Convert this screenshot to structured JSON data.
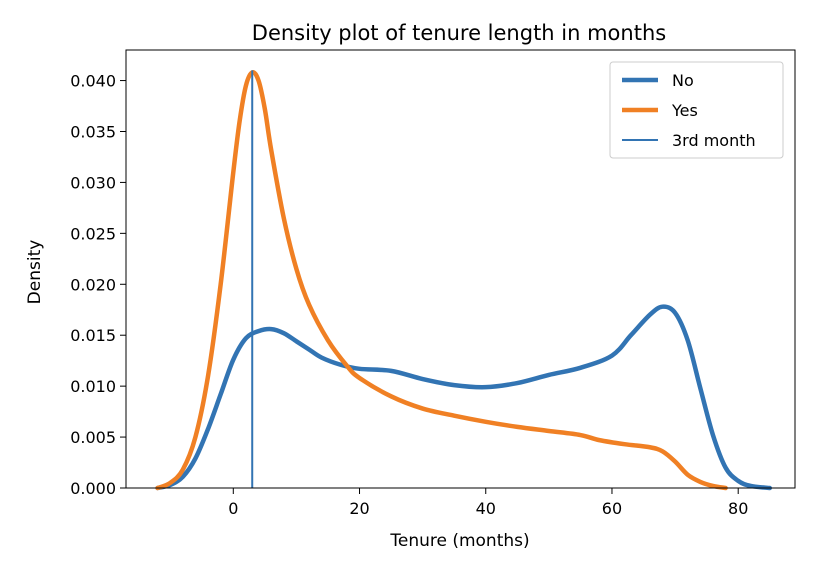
{
  "chart_data": {
    "type": "line",
    "title": "Density plot of tenure length in months",
    "xlabel": "Tenure (months)",
    "ylabel": "Density",
    "xlim": [
      -17,
      89
    ],
    "ylim": [
      0,
      0.043
    ],
    "xticks": [
      0,
      20,
      40,
      60,
      80
    ],
    "xtick_labels": [
      "0",
      "20",
      "40",
      "60",
      "80"
    ],
    "yticks": [
      0.0,
      0.005,
      0.01,
      0.015,
      0.02,
      0.025,
      0.03,
      0.035,
      0.04
    ],
    "ytick_labels": [
      "0.000",
      "0.005",
      "0.010",
      "0.015",
      "0.020",
      "0.025",
      "0.030",
      "0.035",
      "0.040"
    ],
    "grid": false,
    "legend_position": "top-right",
    "series": [
      {
        "name": "No",
        "color": "#3274b3",
        "points": [
          [
            -12,
            0.0
          ],
          [
            -10,
            0.0003
          ],
          [
            -8,
            0.0011
          ],
          [
            -6,
            0.0029
          ],
          [
            -4,
            0.0058
          ],
          [
            -2,
            0.0092
          ],
          [
            0,
            0.0126
          ],
          [
            2,
            0.0147
          ],
          [
            4,
            0.0154
          ],
          [
            6,
            0.0156
          ],
          [
            8,
            0.0152
          ],
          [
            10,
            0.0144
          ],
          [
            12,
            0.0136
          ],
          [
            14,
            0.0128
          ],
          [
            17,
            0.0121
          ],
          [
            20,
            0.0117
          ],
          [
            25,
            0.0115
          ],
          [
            30,
            0.0107
          ],
          [
            35,
            0.0101
          ],
          [
            40,
            0.0099
          ],
          [
            45,
            0.0103
          ],
          [
            50,
            0.0111
          ],
          [
            55,
            0.0118
          ],
          [
            60,
            0.013
          ],
          [
            63,
            0.015
          ],
          [
            66,
            0.017
          ],
          [
            68,
            0.0178
          ],
          [
            70,
            0.0172
          ],
          [
            72,
            0.0145
          ],
          [
            74,
            0.0098
          ],
          [
            76,
            0.0052
          ],
          [
            78,
            0.002
          ],
          [
            80,
            0.0007
          ],
          [
            82,
            0.0002
          ],
          [
            85,
            0.0
          ]
        ]
      },
      {
        "name": "Yes",
        "color": "#f08024",
        "points": [
          [
            -12,
            0.0
          ],
          [
            -10,
            0.0005
          ],
          [
            -8,
            0.0018
          ],
          [
            -6,
            0.005
          ],
          [
            -4,
            0.011
          ],
          [
            -2,
            0.02
          ],
          [
            0,
            0.031
          ],
          [
            1,
            0.036
          ],
          [
            2,
            0.0395
          ],
          [
            3,
            0.0408
          ],
          [
            4,
            0.04
          ],
          [
            5,
            0.0372
          ],
          [
            6,
            0.0332
          ],
          [
            8,
            0.0265
          ],
          [
            10,
            0.0215
          ],
          [
            12,
            0.018
          ],
          [
            15,
            0.0145
          ],
          [
            18,
            0.012
          ],
          [
            20,
            0.0108
          ],
          [
            25,
            0.009
          ],
          [
            30,
            0.0078
          ],
          [
            35,
            0.0071
          ],
          [
            40,
            0.0065
          ],
          [
            45,
            0.006
          ],
          [
            50,
            0.0056
          ],
          [
            55,
            0.0052
          ],
          [
            58,
            0.0047
          ],
          [
            62,
            0.0043
          ],
          [
            66,
            0.004
          ],
          [
            68,
            0.0036
          ],
          [
            70,
            0.0026
          ],
          [
            72,
            0.0013
          ],
          [
            74,
            0.0006
          ],
          [
            76,
            0.0002
          ],
          [
            78,
            0.0
          ]
        ]
      },
      {
        "name": "3rd month",
        "color": "#3274b3",
        "type": "vline",
        "x": 3,
        "y_range": [
          0,
          0.041
        ]
      }
    ]
  }
}
